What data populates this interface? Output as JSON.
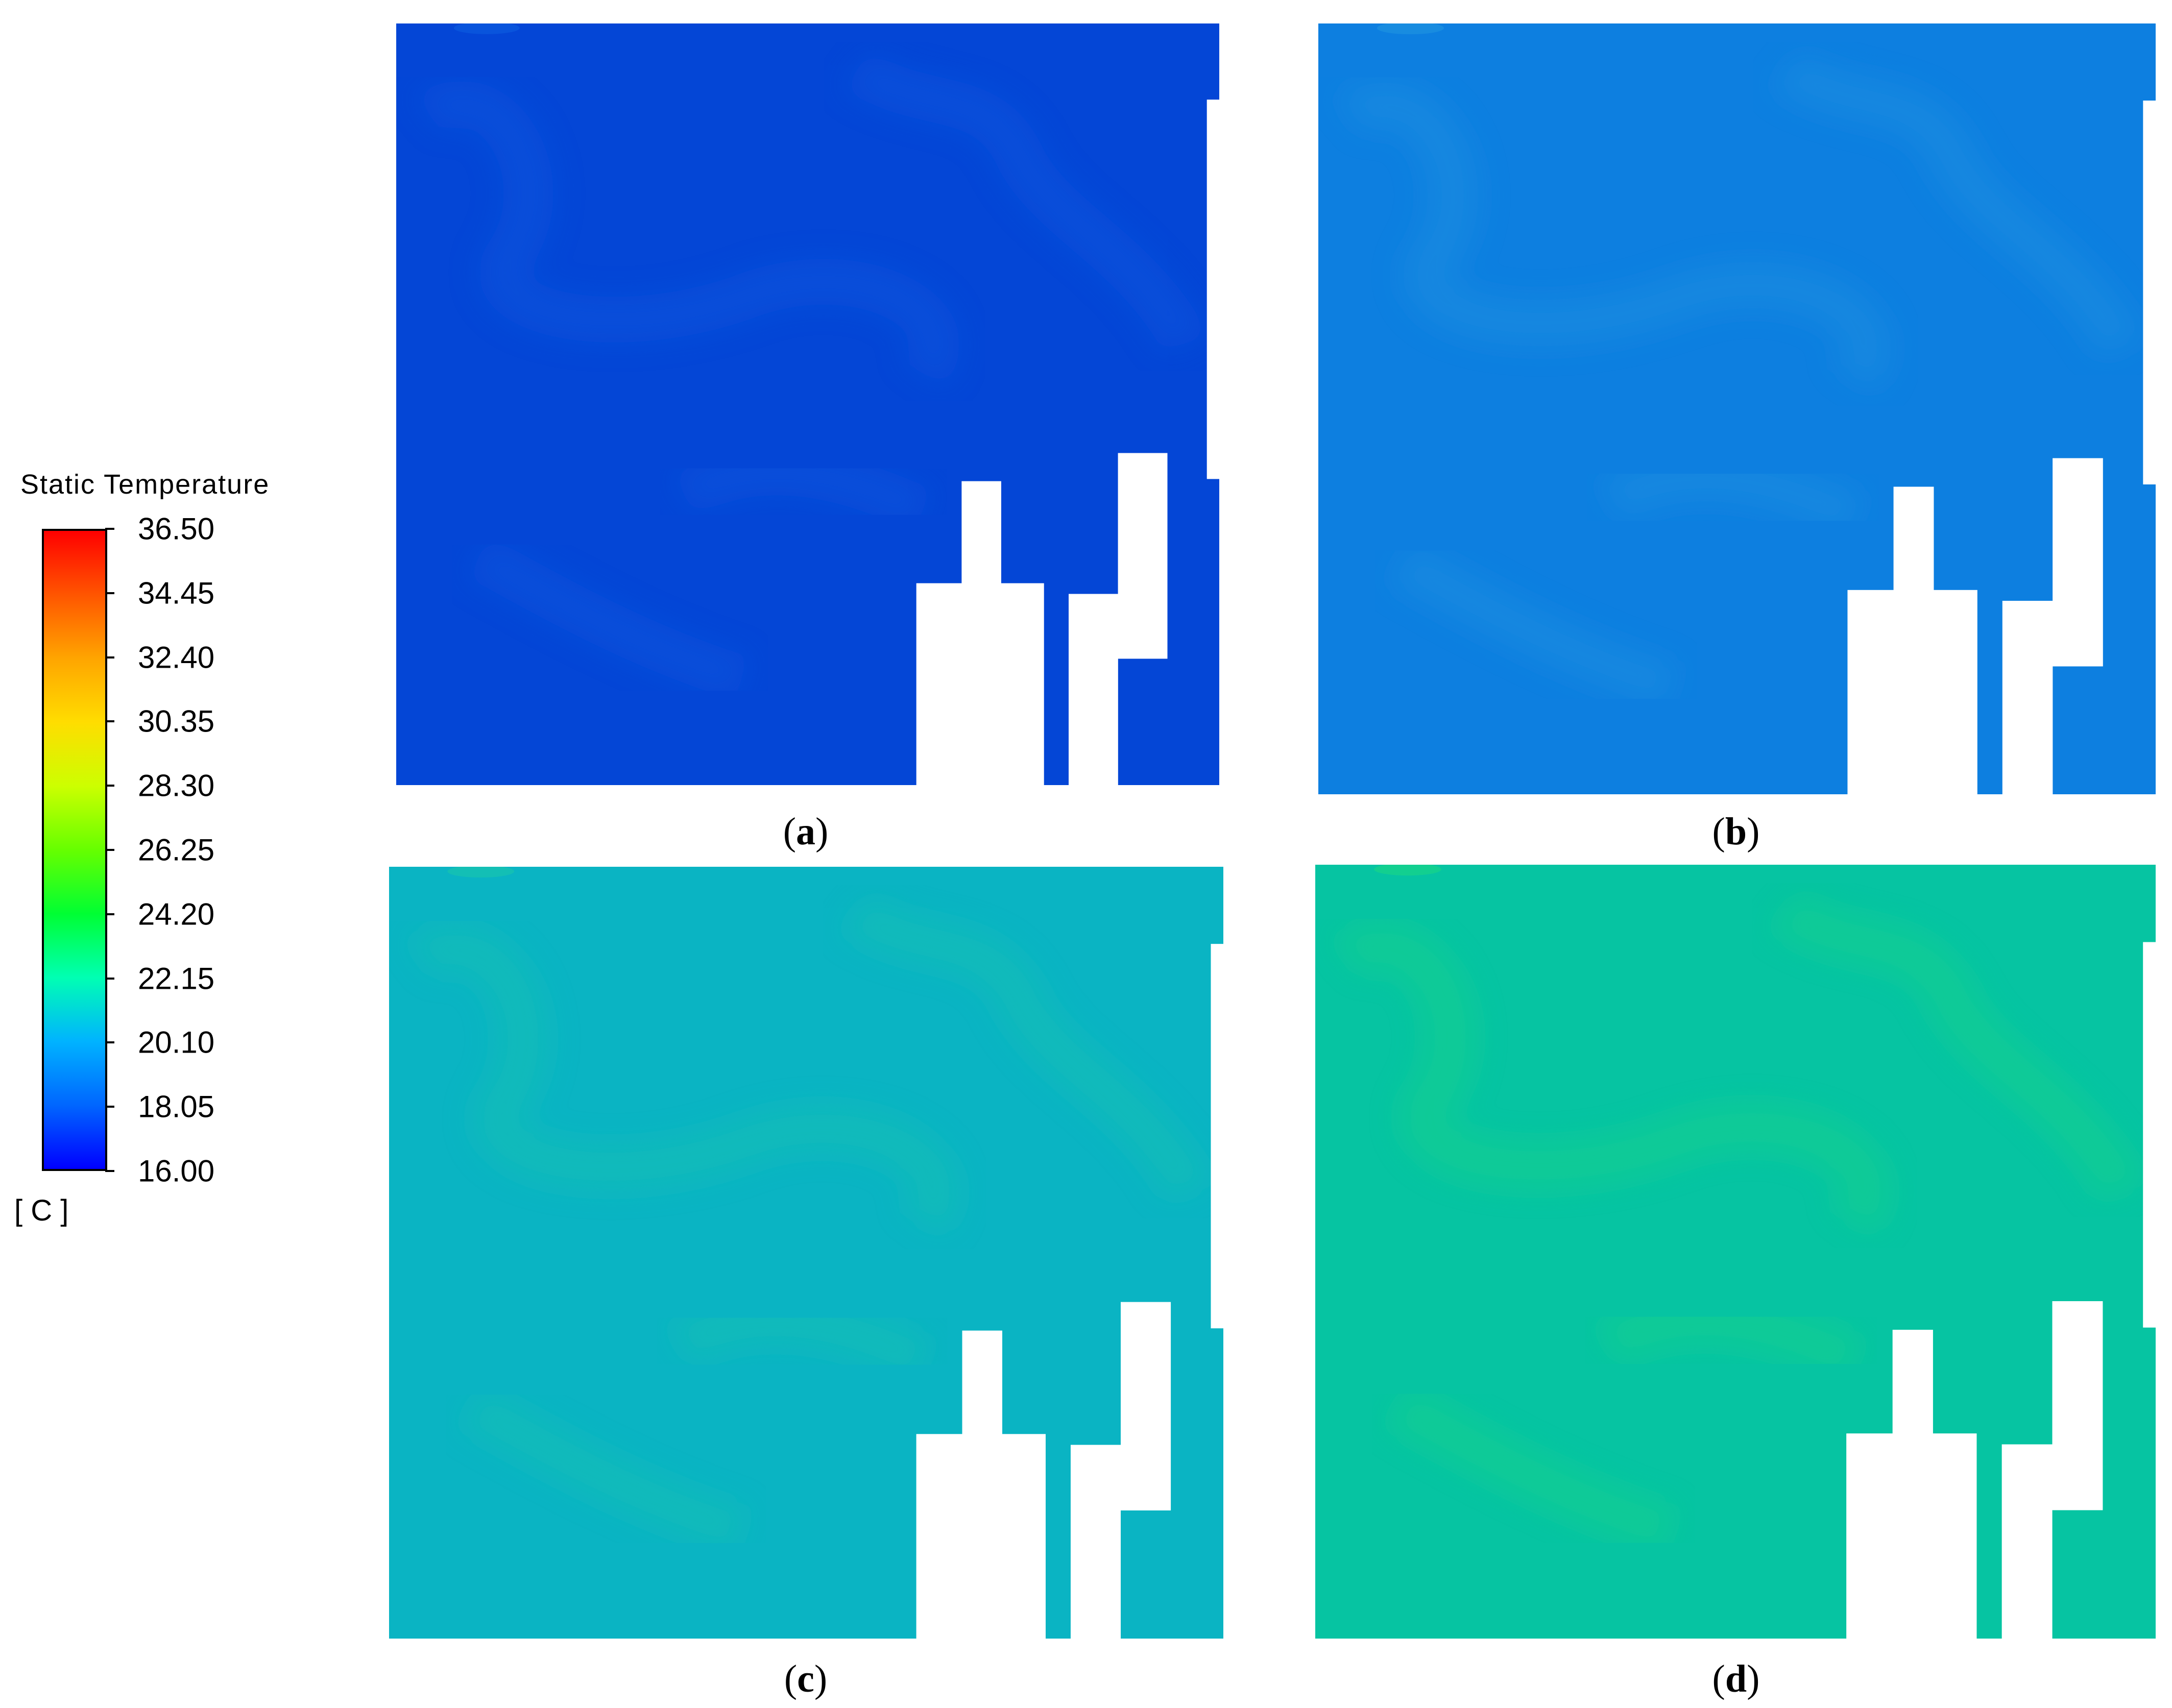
{
  "legend": {
    "title": "Static Temperature",
    "unit": "[ C ]",
    "tick_labels": [
      "36.50",
      "34.45",
      "32.40",
      "30.35",
      "28.30",
      "26.25",
      "24.20",
      "22.15",
      "20.10",
      "18.05",
      "16.00"
    ],
    "min": 16.0,
    "max": 36.5,
    "colormap": [
      "#0000ff",
      "#0066ff",
      "#00b3ff",
      "#00ffb3",
      "#00ff33",
      "#66ff00",
      "#ccff00",
      "#ffdd00",
      "#ffa500",
      "#ff5500",
      "#ff0000"
    ]
  },
  "panels": [
    {
      "letter": "a",
      "base_color": "#0446d6",
      "highlight_color": "#0a55dd"
    },
    {
      "letter": "b",
      "base_color": "#0d7fe0",
      "highlight_color": "#1a8ee0"
    },
    {
      "letter": "c",
      "base_color": "#0ab4c3",
      "highlight_color": "#14c0b4"
    },
    {
      "letter": "d",
      "base_color": "#06c4a2",
      "highlight_color": "#14d08e"
    }
  ]
}
